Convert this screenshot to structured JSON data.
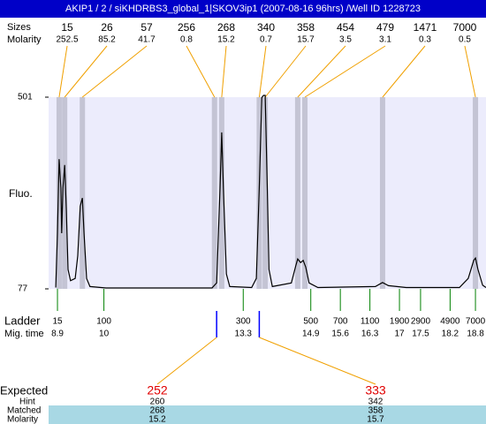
{
  "chart_data": {
    "type": "electropherogram",
    "title": "AKIP1 / 2 / siKHDRBS3_global_1|SKOV3ip1 (2007-08-16 96hrs) /Well ID 1228723",
    "y_label": "Fluo.",
    "ylim": [
      77,
      501
    ],
    "yticks": [
      77,
      501
    ],
    "xlim": [
      8.69,
      19.05
    ],
    "peak_row_labels": [
      "Sizes",
      "Molarity"
    ],
    "peaks": {
      "sizes": [
        15,
        26,
        57,
        256,
        268,
        340,
        358,
        454,
        479,
        1471,
        7000
      ],
      "molarity": [
        252.5,
        85.2,
        41.7,
        0.8,
        15.2,
        0.7,
        15.7,
        3.5,
        3.1,
        0.3,
        0.5
      ],
      "x": [
        8.94,
        9.07,
        9.49,
        12.62,
        12.79,
        13.68,
        13.82,
        14.59,
        14.76,
        16.6,
        18.8
      ]
    },
    "trace": {
      "color": "#000000",
      "x": [
        8.86,
        8.9,
        8.94,
        8.98,
        9.0,
        9.03,
        9.07,
        9.11,
        9.15,
        9.21,
        9.32,
        9.38,
        9.44,
        9.49,
        9.53,
        9.59,
        9.67,
        10.05,
        12.56,
        12.67,
        12.75,
        12.79,
        12.83,
        12.9,
        12.98,
        13.5,
        13.61,
        13.68,
        13.74,
        13.78,
        13.82,
        13.87,
        13.91,
        13.99,
        14.44,
        14.55,
        14.59,
        14.66,
        14.72,
        14.78,
        14.86,
        15.07,
        16.43,
        16.6,
        16.74,
        17.16,
        18.42,
        18.63,
        18.76,
        18.8,
        18.86,
        18.97,
        19.05
      ],
      "y": [
        80,
        200,
        364,
        300,
        200,
        300,
        351,
        250,
        120,
        95,
        100,
        150,
        260,
        278,
        200,
        100,
        82,
        79,
        79,
        90,
        300,
        423,
        300,
        110,
        82,
        80,
        100,
        300,
        500,
        505,
        505,
        300,
        120,
        82,
        90,
        130,
        143,
        135,
        140,
        125,
        90,
        80,
        82,
        91,
        84,
        80,
        80,
        100,
        140,
        145,
        120,
        85,
        80
      ]
    },
    "ladder": {
      "label": "Ladder",
      "time_label": "Mig. time",
      "sizes": [
        15,
        100,
        300,
        500,
        700,
        1100,
        1900,
        2900,
        4900,
        7000
      ],
      "times": [
        8.9,
        10,
        13.3,
        14.9,
        15.6,
        16.3,
        17,
        17.5,
        18.2,
        18.8
      ]
    },
    "expected": {
      "label": "Expected",
      "values": [
        252,
        333
      ],
      "marker_x": [
        12.67,
        13.68
      ],
      "hint_label": "Hint",
      "hint": [
        260,
        342
      ],
      "matched_label": "Matched",
      "matched": [
        268,
        358
      ],
      "molarity_label": "Molarity",
      "molarity": [
        15.2,
        15.7
      ]
    }
  }
}
